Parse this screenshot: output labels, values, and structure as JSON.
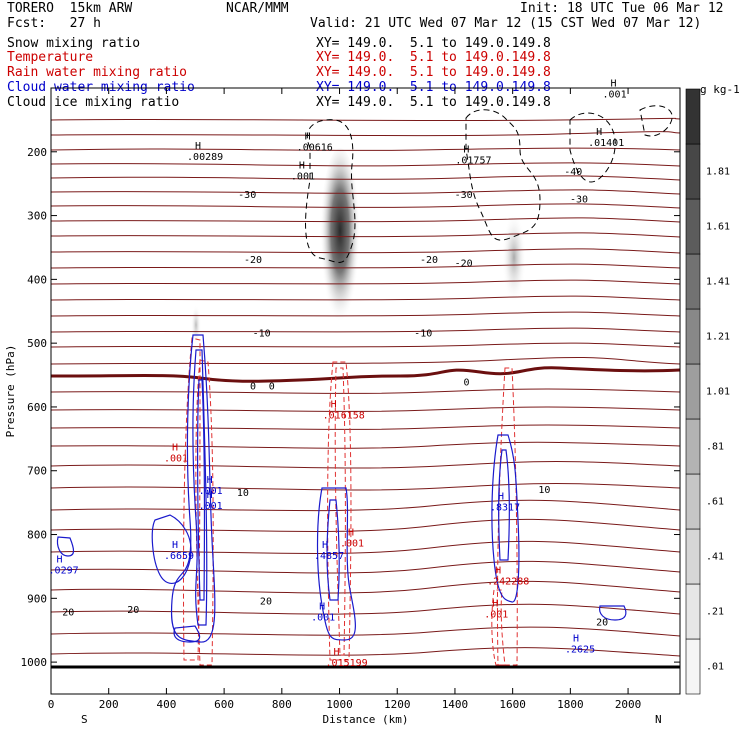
{
  "header": {
    "model": "TORERO  15km ARW",
    "center": "NCAR/MMM",
    "init": "Init: 18 UTC Tue 06 Mar 12",
    "fcst": "Fcst:   27 h",
    "valid": "Valid: 21 UTC Wed 07 Mar 12 (15 CST Wed 07 Mar 12)"
  },
  "legend": [
    {
      "label": "Snow mixing ratio",
      "xy": "",
      "color": "#000000"
    },
    {
      "label": "Temperature",
      "xy": "XY= 149.0.  5.1 to 149.0.149.8",
      "color": "#cc0000"
    },
    {
      "label": "Rain water mixing ratio",
      "xy": "XY= 149.0.  5.1 to 149.0.149.8",
      "color": "#cc0000"
    },
    {
      "label": "Cloud water mixing ratio",
      "xy": "XY= 149.0.  5.1 to 149.0.149.8",
      "color": "#0000cc"
    },
    {
      "label": "Cloud ice mixing ratio",
      "xy": "XY= 149.0.  5.1 to 149.0.149.8",
      "color": "#000000"
    }
  ],
  "legend_first_xy": "XY= 149.0.  5.1 to 149.0.149.8",
  "colors": {
    "temperature": "#7a1a1a",
    "rain": "#e03030",
    "cloud_water": "#1a1acc",
    "cloud_ice": "#000000",
    "snow_shade": "#555555"
  },
  "chart_data": {
    "type": "heatmap",
    "xlabel": "Distance (km)",
    "ylabel": "Pressure (hPa)",
    "xlim": [
      0,
      2180
    ],
    "ylim": [
      1050,
      100
    ],
    "x_ticks": [
      0,
      200,
      400,
      600,
      800,
      1000,
      1200,
      1400,
      1600,
      1800,
      2000
    ],
    "y_ticks": [
      200,
      300,
      400,
      500,
      600,
      700,
      800,
      900,
      1000
    ],
    "x_end_labels": {
      "left": "S",
      "right": "N"
    },
    "colorbar": {
      "unit": "g kg-1",
      "labels": [
        ".01",
        ".21",
        ".41",
        ".61",
        ".81",
        "1.01",
        "1.21",
        "1.41",
        "1.61",
        "1.81"
      ],
      "grays": [
        "#f5f5f5",
        "#e6e6e6",
        "#d6d6d6",
        "#c6c6c6",
        "#b3b3b3",
        "#9e9e9e",
        "#888888",
        "#727272",
        "#5c5c5c",
        "#474747",
        "#333333"
      ]
    },
    "temperature_labels": [
      {
        "text": "-30",
        "x": 680,
        "p": 268
      },
      {
        "text": "-30",
        "x": 1430,
        "p": 268
      },
      {
        "text": "-30",
        "x": 1830,
        "p": 275
      },
      {
        "text": "-40",
        "x": 1810,
        "p": 232
      },
      {
        "text": "-20",
        "x": 700,
        "p": 370
      },
      {
        "text": "-20",
        "x": 1310,
        "p": 370
      },
      {
        "text": "-20",
        "x": 1430,
        "p": 375
      },
      {
        "text": "-10",
        "x": 730,
        "p": 485
      },
      {
        "text": "-10",
        "x": 1290,
        "p": 485
      },
      {
        "text": "0",
        "x": 700,
        "p": 568
      },
      {
        "text": "0",
        "x": 765,
        "p": 568
      },
      {
        "text": "0",
        "x": 1440,
        "p": 562
      },
      {
        "text": "10",
        "x": 665,
        "p": 735
      },
      {
        "text": "10",
        "x": 1710,
        "p": 730
      },
      {
        "text": "20",
        "x": 60,
        "p": 922
      },
      {
        "text": "20",
        "x": 285,
        "p": 918
      },
      {
        "text": "20",
        "x": 745,
        "p": 905
      },
      {
        "text": "20",
        "x": 1910,
        "p": 938
      }
    ],
    "highs": [
      {
        "text": ".00289",
        "x": 520,
        "p": 210,
        "color": "#000000"
      },
      {
        "text": ".00616",
        "x": 900,
        "p": 195,
        "color": "#000000"
      },
      {
        "text": ".001",
        "x": 880,
        "p": 240,
        "color": "#000000"
      },
      {
        "text": ".01757",
        "x": 1450,
        "p": 215,
        "color": "#000000"
      },
      {
        "text": ".001",
        "x": 1960,
        "p": 112,
        "color": "#000000"
      },
      {
        "text": ".01401",
        "x": 1910,
        "p": 188,
        "color": "#000000"
      },
      {
        "text": ".016158",
        "x": 990,
        "p": 615,
        "color": "#cc0000"
      },
      {
        "text": ".001",
        "x": 440,
        "p": 682,
        "color": "#cc0000"
      },
      {
        "text": ".001",
        "x": 560,
        "p": 733,
        "color": "#0000cc"
      },
      {
        "text": ".001",
        "x": 560,
        "p": 757,
        "color": "#0000cc"
      },
      {
        "text": ".6659",
        "x": 440,
        "p": 835,
        "color": "#0000cc"
      },
      {
        "text": ".0297",
        "x": 40,
        "p": 858,
        "color": "#0000cc"
      },
      {
        "text": ".4857",
        "x": 960,
        "p": 835,
        "color": "#0000cc"
      },
      {
        "text": ".001",
        "x": 1050,
        "p": 816,
        "color": "#cc0000"
      },
      {
        "text": ".001",
        "x": 950,
        "p": 932,
        "color": "#0000cc"
      },
      {
        "text": ".015199",
        "x": 1000,
        "p": 1003,
        "color": "#cc0000"
      },
      {
        "text": ".8317",
        "x": 1570,
        "p": 759,
        "color": "#0000cc"
      },
      {
        "text": ".242288",
        "x": 1560,
        "p": 875,
        "color": "#cc0000"
      },
      {
        "text": ".001",
        "x": 1550,
        "p": 927,
        "color": "#cc0000"
      },
      {
        "text": ".2625",
        "x": 1830,
        "p": 982,
        "color": "#0000cc"
      }
    ]
  }
}
